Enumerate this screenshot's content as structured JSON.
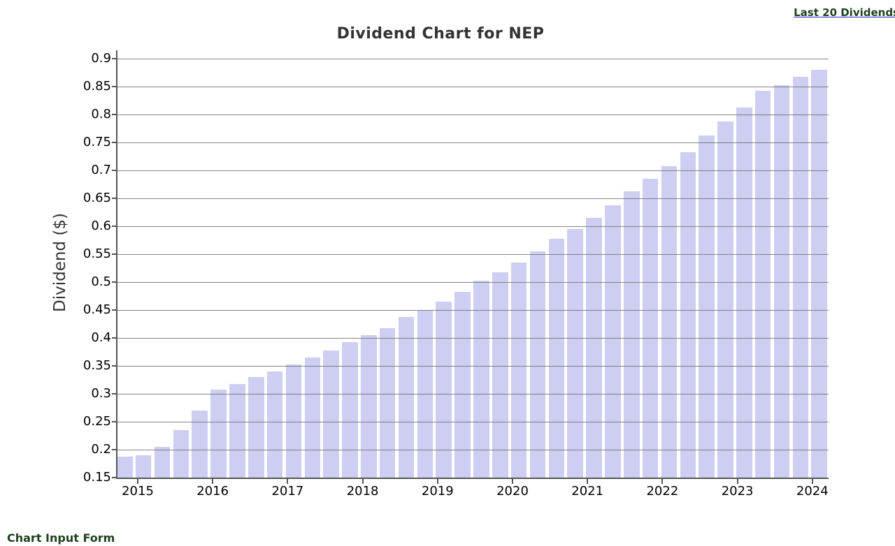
{
  "links": {
    "top_right": "Last 20 Dividends",
    "bottom_left": "Chart Input Form"
  },
  "colors": {
    "link_green": "#1d421d",
    "link_underline_blue": "#2a2ac8",
    "title_gray": "#333333",
    "bar_fill": "#cecef2",
    "grid_gray": "#6e6e6e",
    "axis_gray": "#555555",
    "tick_label_black": "#000000",
    "background": "#ffffff"
  },
  "chart_data": {
    "type": "bar",
    "title": "Dividend Chart for NEP",
    "xlabel": "",
    "ylabel": "Dividend ($)",
    "x_tick_labels": [
      "2015",
      "2016",
      "2017",
      "2018",
      "2019",
      "2020",
      "2021",
      "2022",
      "2023",
      "2024"
    ],
    "y_tick_labels": [
      "0.15",
      "0.2",
      "0.25",
      "0.3",
      "0.35",
      "0.4",
      "0.45",
      "0.5",
      "0.55",
      "0.6",
      "0.65",
      "0.7",
      "0.75",
      "0.8",
      "0.85",
      "0.9"
    ],
    "ylim": [
      0.15,
      0.9
    ],
    "y_step": 0.05,
    "grid": true,
    "legend": false,
    "bars_per_year": 4,
    "values": [
      0.1875,
      0.19,
      0.205,
      0.235,
      0.27,
      0.3075,
      0.3175,
      0.33,
      0.34,
      0.3525,
      0.365,
      0.3775,
      0.3925,
      0.405,
      0.4175,
      0.4375,
      0.45,
      0.465,
      0.4825,
      0.5025,
      0.5175,
      0.535,
      0.555,
      0.5775,
      0.595,
      0.615,
      0.6375,
      0.6625,
      0.685,
      0.7075,
      0.7325,
      0.7625,
      0.7875,
      0.8125,
      0.8425,
      0.8525,
      0.8675,
      0.88
    ]
  }
}
